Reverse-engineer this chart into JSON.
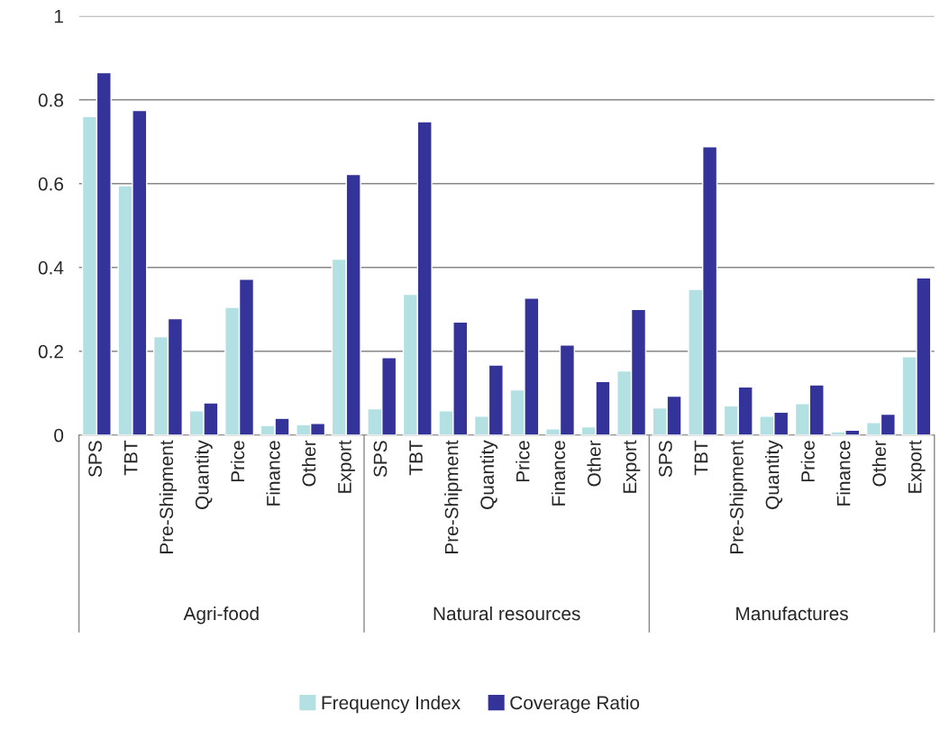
{
  "chart_data": {
    "type": "bar",
    "categories": [
      "SPS",
      "TBT",
      "Pre-Shipment",
      "Quantity",
      "Price",
      "Finance",
      "Other",
      "Export",
      "SPS",
      "TBT",
      "Pre-Shipment",
      "Quantity",
      "Price",
      "Finance",
      "Other",
      "Export",
      "SPS",
      "TBT",
      "Pre-Shipment",
      "Quantity",
      "Price",
      "Finance",
      "Other",
      "Export"
    ],
    "series": [
      {
        "name": "Frequency Index",
        "color": "#b3e0e3",
        "values": [
          0.76,
          0.595,
          0.235,
          0.058,
          0.305,
          0.023,
          0.025,
          0.42,
          0.063,
          0.336,
          0.058,
          0.045,
          0.108,
          0.015,
          0.02,
          0.153,
          0.065,
          0.348,
          0.07,
          0.045,
          0.075,
          0.008,
          0.03,
          0.187
        ]
      },
      {
        "name": "Coverage Ratio",
        "color": "#333399",
        "values": [
          0.865,
          0.775,
          0.278,
          0.077,
          0.372,
          0.04,
          0.028,
          0.622,
          0.185,
          0.748,
          0.27,
          0.167,
          0.327,
          0.215,
          0.128,
          0.3,
          0.093,
          0.688,
          0.115,
          0.055,
          0.12,
          0.012,
          0.05,
          0.375
        ]
      }
    ],
    "annotations": [
      "Agri-food",
      "Natural resources",
      "Manufactures"
    ],
    "ylim": [
      0,
      1
    ],
    "yticks": [
      0,
      0.2,
      0.4,
      0.6,
      0.8,
      1
    ],
    "grid": "y",
    "legend": "bottom"
  }
}
